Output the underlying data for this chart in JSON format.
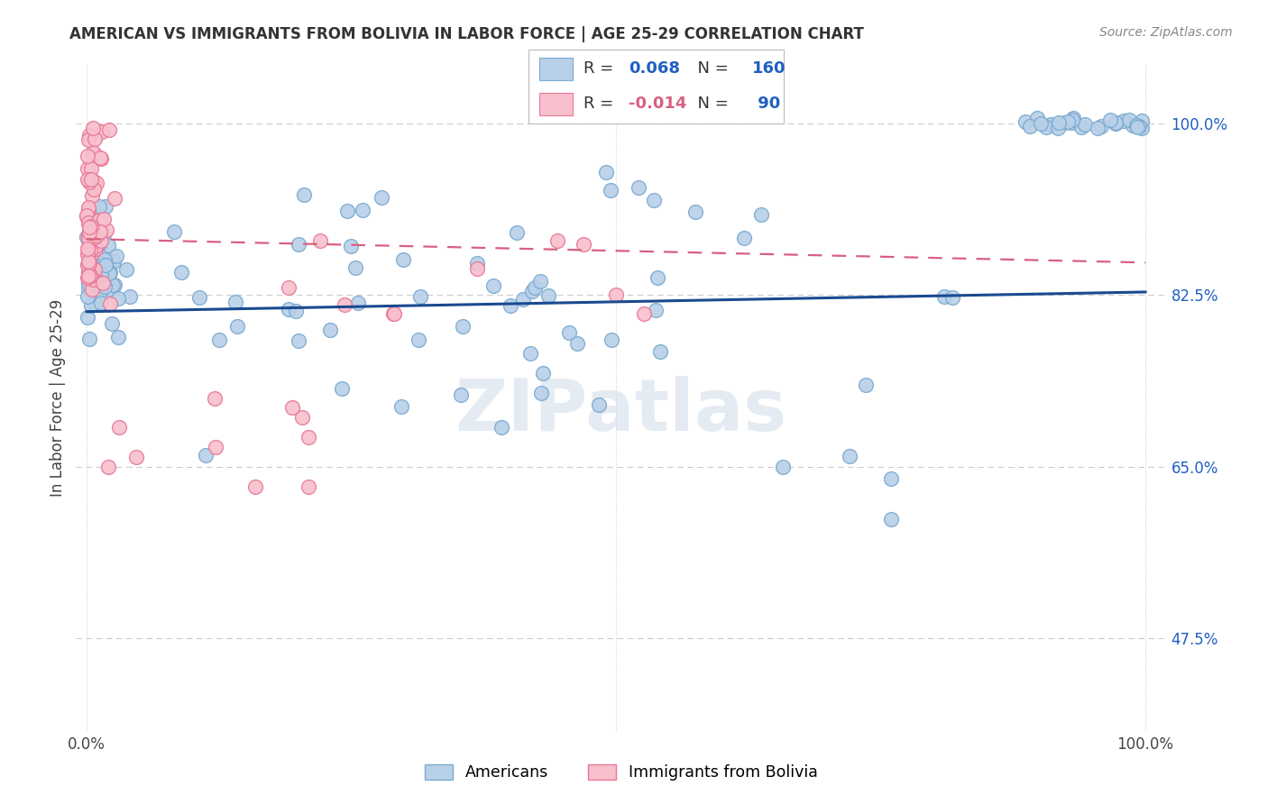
{
  "title": "AMERICAN VS IMMIGRANTS FROM BOLIVIA IN LABOR FORCE | AGE 25-29 CORRELATION CHART",
  "source": "Source: ZipAtlas.com",
  "ylabel": "In Labor Force | Age 25-29",
  "blue_R": 0.068,
  "blue_N": 160,
  "pink_R": -0.014,
  "pink_N": 90,
  "blue_fill": "#b8d0e8",
  "blue_edge": "#7aaad0",
  "pink_fill": "#f8c0cc",
  "pink_edge": "#e87898",
  "trend_blue_color": "#1a4a90",
  "trend_pink_color": "#d86080",
  "watermark_color": "#d0dce8",
  "right_tick_color": "#2060c0",
  "title_color": "#333333",
  "source_color": "#888888",
  "grid_color": "#cccccc",
  "ytick_values": [
    0.475,
    0.65,
    0.825,
    1.0
  ],
  "ytick_labels": [
    "47.5%",
    "65.0%",
    "82.5%",
    "100.0%"
  ],
  "ylim": [
    0.38,
    1.06
  ],
  "xlim": [
    -0.01,
    1.02
  ],
  "trend_blue_y0": 0.808,
  "trend_blue_y1": 0.828,
  "trend_pink_y0": 0.882,
  "trend_pink_y1": 0.858
}
